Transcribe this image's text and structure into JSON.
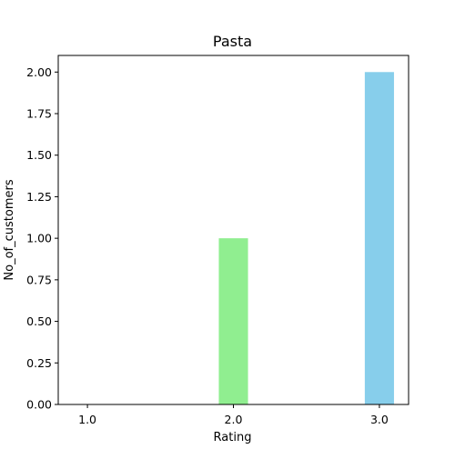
{
  "chart_data": {
    "type": "bar",
    "title": "Pasta",
    "xlabel": "Rating",
    "ylabel": "No_of_customers",
    "categories": [
      1.0,
      2.0,
      3.0
    ],
    "category_labels": [
      "1.0",
      "2.0",
      "3.0"
    ],
    "values": [
      0,
      1,
      2
    ],
    "bar_colors": [
      "#90ee90",
      "#90ee90",
      "#87ceeb"
    ],
    "xlim": [
      0.8,
      3.2
    ],
    "ylim": [
      0,
      2.1
    ],
    "yticks": [
      0,
      0.25,
      0.5,
      0.75,
      1.0,
      1.25,
      1.5,
      1.75,
      2.0
    ],
    "ytick_labels": [
      "0.00",
      "0.25",
      "0.50",
      "0.75",
      "1.00",
      "1.25",
      "1.50",
      "1.75",
      "2.00"
    ],
    "bar_width": 0.2,
    "grid": false,
    "legend": "none"
  }
}
